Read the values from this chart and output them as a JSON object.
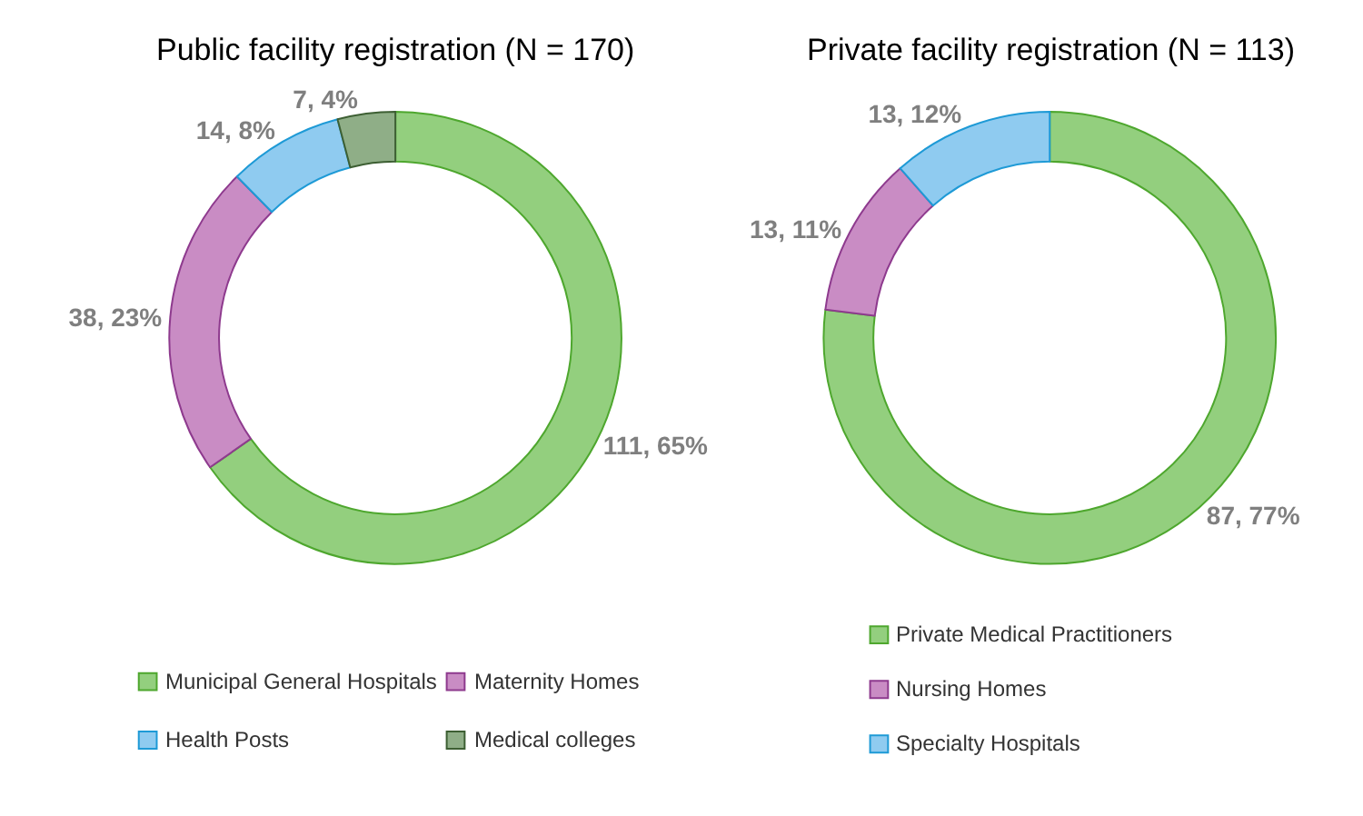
{
  "chart_data": [
    {
      "type": "donut",
      "title": "Public facility registration (N = 170)",
      "categories": [
        "Municipal General Hospitals",
        "Maternity Homes",
        "Health Posts",
        "Medical colleges"
      ],
      "values": [
        111,
        38,
        14,
        7
      ],
      "value_labels": [
        "111, 65%",
        "38, 23%",
        "14, 8%",
        "7, 4%"
      ],
      "colors": [
        "#93cf7e",
        "#c98cc4",
        "#8fcbf0",
        "#8fae87"
      ],
      "legend": "bottom"
    },
    {
      "type": "donut",
      "title": "Private facility registration (N = 113)",
      "categories": [
        "Private Medical Practitioners",
        "Nursing Homes",
        "Specialty Hospitals"
      ],
      "values": [
        87,
        13,
        13
      ],
      "value_labels": [
        "87, 77%",
        "13, 11%",
        "13, 12%"
      ],
      "colors": [
        "#93cf7e",
        "#c98cc4",
        "#8fcbf0"
      ],
      "legend": "bottom"
    }
  ]
}
